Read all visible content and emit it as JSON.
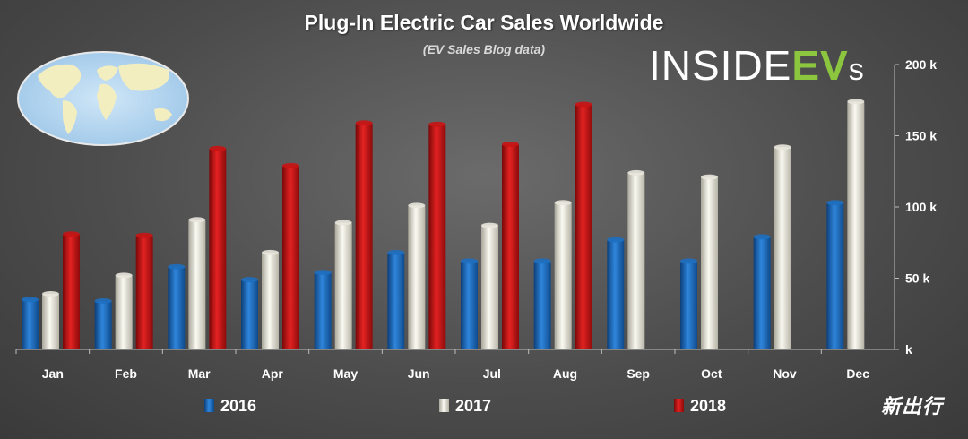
{
  "chart_data": {
    "type": "bar",
    "title": "Plug-In Electric Car Sales Worldwide",
    "subtitle": "(EV Sales Blog data)",
    "categories": [
      "Jan",
      "Feb",
      "Mar",
      "Apr",
      "May",
      "Jun",
      "Jul",
      "Aug",
      "Sep",
      "Oct",
      "Nov",
      "Dec"
    ],
    "series": [
      {
        "name": "2016",
        "color": "#1e6fc0",
        "values": [
          35,
          34,
          58,
          49,
          54,
          68,
          62,
          62,
          77,
          62,
          79,
          103
        ]
      },
      {
        "name": "2017",
        "color": "#e8e6dc",
        "values": [
          39,
          52,
          91,
          68,
          89,
          101,
          87,
          103,
          124,
          121,
          142,
          174
        ]
      },
      {
        "name": "2018",
        "color": "#c81414",
        "values": [
          81,
          80,
          141,
          129,
          159,
          158,
          144,
          172,
          null,
          null,
          null,
          null
        ]
      }
    ],
    "ylim": [
      0,
      200
    ],
    "y_ticks": [
      "k",
      "50 k",
      "100 k",
      "150 k",
      "200 k"
    ],
    "y_axis_side": "right",
    "legend_position": "bottom",
    "grid": false
  },
  "branding": {
    "logo_main": "INSIDE",
    "logo_accent": "EV",
    "logo_suffix": "s",
    "watermark": "新出行"
  }
}
